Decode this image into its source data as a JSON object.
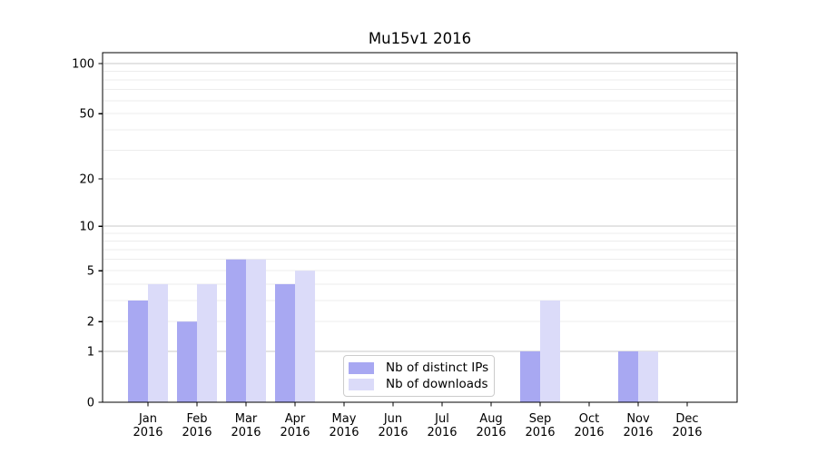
{
  "chart_data": {
    "type": "bar",
    "title": "Mu15v1 2016",
    "xlabel": "",
    "ylabel": "",
    "categories": [
      "Jan",
      "Feb",
      "Mar",
      "Apr",
      "May",
      "Jun",
      "Jul",
      "Aug",
      "Sep",
      "Oct",
      "Nov",
      "Dec"
    ],
    "category_year": "2016",
    "series": [
      {
        "name": "Nb of distinct IPs",
        "color": "#a8a8f2",
        "values": [
          3,
          2,
          6,
          4,
          0,
          0,
          0,
          0,
          1,
          0,
          1,
          0
        ]
      },
      {
        "name": "Nb of downloads",
        "color": "#dbdbf9",
        "values": [
          4,
          4,
          6,
          5,
          0,
          0,
          0,
          0,
          3,
          0,
          1,
          0
        ]
      }
    ],
    "y_axis": {
      "scale": "log10(1+v)",
      "labeled_ticks": [
        0,
        1,
        2,
        5,
        10,
        20,
        50,
        100
      ],
      "major_gridlines": [
        1,
        10,
        100
      ],
      "minor_gridlines": [
        2,
        3,
        4,
        5,
        6,
        7,
        8,
        9,
        20,
        30,
        40,
        50,
        60,
        70,
        80,
        90
      ],
      "top_value": 118
    },
    "legend_position": "bottom-center",
    "grid": true
  },
  "style": {
    "major_grid_color": "#c8c8c8",
    "minor_grid_color": "#ededed",
    "spine_color": "#000000",
    "tick_color": "#000000",
    "label_color": "#000000",
    "background": "#ffffff"
  }
}
